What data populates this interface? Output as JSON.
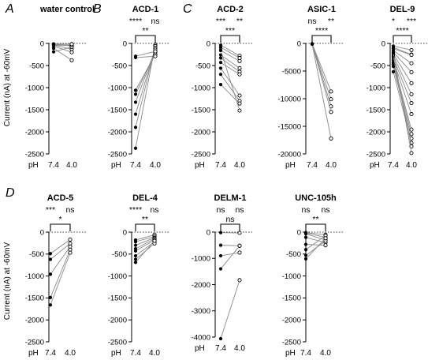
{
  "figure": {
    "ylabel": "Current (nA) at -60mV",
    "x_axis_prefix": "pH",
    "x_ticks": [
      "7.4",
      "4.0"
    ]
  },
  "chart_data": [
    {
      "type": "scatter",
      "panel_letter": "A",
      "title": "water control",
      "categories": [
        "7.4",
        "4.0"
      ],
      "ylim": [
        -2500,
        0
      ],
      "yticks": [
        0,
        -500,
        -1000,
        -1500,
        -2000,
        -2500
      ],
      "yticklabels": [
        "0",
        "-500",
        "-1000",
        "-1500",
        "-2000",
        "-2500"
      ],
      "sig_top": [
        "",
        ""
      ],
      "bracket": "",
      "pairs": [
        [
          -10,
          -20
        ],
        [
          -20,
          -60
        ],
        [
          -35,
          -130
        ],
        [
          -60,
          -200
        ],
        [
          -110,
          -380
        ],
        [
          -190,
          -80
        ],
        [
          -40,
          -40
        ],
        [
          -25,
          -15
        ]
      ]
    },
    {
      "type": "scatter",
      "panel_letter": "B",
      "title": "ACD-1",
      "categories": [
        "7.4",
        "4.0"
      ],
      "ylim": [
        -2500,
        0
      ],
      "yticks": [
        0,
        -500,
        -1000,
        -1500,
        -2000,
        -2500
      ],
      "yticklabels": [
        "0",
        "-500",
        "-1000",
        "-1500",
        "-2000",
        "-2500"
      ],
      "sig_top": [
        "****",
        "ns"
      ],
      "bracket": "**",
      "pairs": [
        [
          -2370,
          -30
        ],
        [
          -1900,
          -60
        ],
        [
          -1600,
          -100
        ],
        [
          -1330,
          -140
        ],
        [
          -1150,
          -200
        ],
        [
          -1060,
          -250
        ],
        [
          -320,
          -290
        ],
        [
          -290,
          -180
        ]
      ]
    },
    {
      "type": "scatter",
      "panel_letter": "C",
      "title": "ACD-2",
      "categories": [
        "7.4",
        "4.0"
      ],
      "ylim": [
        -2500,
        0
      ],
      "yticks": [
        0,
        -500,
        -1000,
        -1500,
        -2000,
        -2500
      ],
      "yticklabels": [
        "0",
        "-500",
        "-1000",
        "-1500",
        "-2000",
        "-2500"
      ],
      "sig_top": [
        "***",
        "**"
      ],
      "bracket": "***",
      "pairs": [
        [
          -40,
          -280
        ],
        [
          -90,
          -330
        ],
        [
          -160,
          -400
        ],
        [
          -260,
          -560
        ],
        [
          -330,
          -640
        ],
        [
          -430,
          -700
        ],
        [
          -560,
          -1180
        ],
        [
          -700,
          -1300
        ],
        [
          -930,
          -1360
        ],
        [
          -150,
          -1520
        ]
      ]
    },
    {
      "type": "scatter",
      "panel_letter": "",
      "title": "ASIC-1",
      "categories": [
        "7.4",
        "4.0"
      ],
      "ylim": [
        -20000,
        0
      ],
      "yticks": [
        0,
        -5000,
        -10000,
        -15000,
        -20000
      ],
      "yticklabels": [
        "0",
        "-5000",
        "-10000",
        "-15000",
        "-20000"
      ],
      "sig_top": [
        "ns",
        "**"
      ],
      "bracket": "****",
      "pairs": [
        [
          -50,
          -8700
        ],
        [
          -80,
          -10100
        ],
        [
          -100,
          -11400
        ],
        [
          -120,
          -12400
        ],
        [
          -150,
          -17200
        ]
      ]
    },
    {
      "type": "scatter",
      "panel_letter": "",
      "title": "DEL-9",
      "categories": [
        "7.4",
        "4.0"
      ],
      "ylim": [
        -2500,
        0
      ],
      "yticks": [
        0,
        -500,
        -1000,
        -1500,
        -2000,
        -2500
      ],
      "yticklabels": [
        "0",
        "-500",
        "-1000",
        "-1500",
        "-2000",
        "-2500"
      ],
      "sig_top": [
        "*",
        "***"
      ],
      "bracket": "****",
      "pairs": [
        [
          -60,
          -150
        ],
        [
          -90,
          -250
        ],
        [
          -120,
          -260
        ],
        [
          -160,
          -450
        ],
        [
          -200,
          -650
        ],
        [
          -240,
          -900
        ],
        [
          -280,
          -1150
        ],
        [
          -330,
          -1350
        ],
        [
          -380,
          -1600
        ],
        [
          -430,
          -1950
        ],
        [
          -470,
          -2050
        ],
        [
          -520,
          -2150
        ],
        [
          -640,
          -2250
        ],
        [
          -290,
          -2330
        ],
        [
          -210,
          -2480
        ]
      ]
    },
    {
      "type": "scatter",
      "panel_letter": "D",
      "title": "ACD-5",
      "categories": [
        "7.4",
        "4.0"
      ],
      "ylim": [
        -2500,
        0
      ],
      "yticks": [
        0,
        -500,
        -1000,
        -1500,
        -2000,
        -2500
      ],
      "yticklabels": [
        "0",
        "-500",
        "-1000",
        "-1500",
        "-2000",
        "-2500"
      ],
      "sig_top": [
        "***",
        "ns"
      ],
      "bracket": "*",
      "pairs": [
        [
          -490,
          -170
        ],
        [
          -620,
          -260
        ],
        [
          -960,
          -330
        ],
        [
          -1490,
          -400
        ],
        [
          -1660,
          -470
        ]
      ]
    },
    {
      "type": "scatter",
      "panel_letter": "",
      "title": "DEL-4",
      "categories": [
        "7.4",
        "4.0"
      ],
      "ylim": [
        -2500,
        0
      ],
      "yticks": [
        0,
        -500,
        -1000,
        -1500,
        -2000,
        -2500
      ],
      "yticklabels": [
        "0",
        "-500",
        "-1000",
        "-1500",
        "-2000",
        "-2500"
      ],
      "sig_top": [
        "****",
        "ns"
      ],
      "bracket": "**",
      "pairs": [
        [
          -180,
          -60
        ],
        [
          -220,
          -100
        ],
        [
          -300,
          -130
        ],
        [
          -380,
          -150
        ],
        [
          -430,
          -180
        ],
        [
          -540,
          -220
        ],
        [
          -620,
          -260
        ],
        [
          -690,
          -200
        ]
      ]
    },
    {
      "type": "scatter",
      "panel_letter": "",
      "title": "DELM-1",
      "categories": [
        "7.4",
        "4.0"
      ],
      "ylim": [
        -4000,
        0
      ],
      "yticks": [
        0,
        -1000,
        -2000,
        -3000,
        -4000
      ],
      "yticklabels": [
        "0",
        "-1000",
        "-2000",
        "-3000",
        "-4000"
      ],
      "sig_top": [
        "ns",
        "ns"
      ],
      "bracket": "ns",
      "pairs": [
        [
          -20,
          -30
        ],
        [
          -500,
          -520
        ],
        [
          -900,
          -780
        ],
        [
          -1400,
          -520
        ],
        [
          -4060,
          -1830
        ]
      ]
    },
    {
      "type": "scatter",
      "panel_letter": "",
      "title": "UNC-105h",
      "categories": [
        "7.4",
        "4.0"
      ],
      "ylim": [
        -2500,
        0
      ],
      "yticks": [
        0,
        -500,
        -1000,
        -1500,
        -2000,
        -2500
      ],
      "yticklabels": [
        "0",
        "-500",
        "-1000",
        "-1500",
        "-2000",
        "-2500"
      ],
      "sig_top": [
        "ns",
        "ns"
      ],
      "bracket": "**",
      "pairs": [
        [
          -10,
          -60
        ],
        [
          -20,
          -120
        ],
        [
          -40,
          -180
        ],
        [
          -120,
          -240
        ],
        [
          -280,
          -300
        ],
        [
          -400,
          -80
        ],
        [
          -530,
          -200
        ],
        [
          -610,
          -140
        ]
      ]
    }
  ]
}
